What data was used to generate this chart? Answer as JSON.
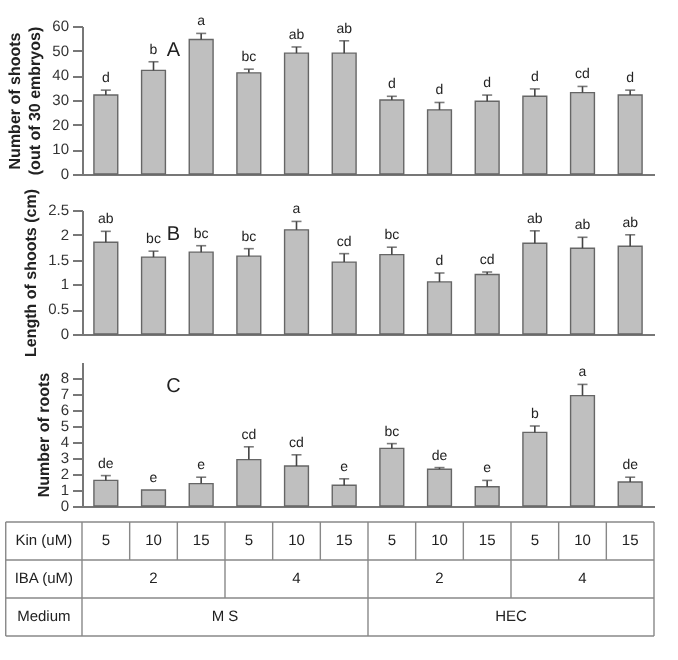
{
  "chart_data": [
    {
      "type": "bar",
      "ylabel": "Number of shoots (out of 30 embryos)",
      "categories": [
        "5",
        "10",
        "15",
        "5",
        "10",
        "15",
        "5",
        "10",
        "15",
        "5",
        "10",
        "15"
      ],
      "color": "#bfbfbf",
      "values": [
        32,
        42,
        54.5,
        41,
        49,
        49,
        30,
        26,
        29.5,
        31.5,
        33,
        32
      ],
      "errors": [
        2,
        3.5,
        2.5,
        1.5,
        2.5,
        5,
        1.5,
        3,
        2.5,
        3,
        2.5,
        2
      ],
      "value_labels": [
        "d",
        "b",
        "a",
        "bc",
        "ab",
        "ab",
        "d",
        "d",
        "d",
        "d",
        "cd",
        "d"
      ],
      "ylim": [
        0,
        60
      ],
      "yticks": [
        0,
        10,
        20,
        30,
        40,
        50,
        60
      ],
      "tick_labels": "y",
      "annotations": [
        "A"
      ]
    },
    {
      "type": "bar",
      "ylabel": "Length of shoots (cm)",
      "categories": [
        "5",
        "10",
        "15",
        "5",
        "10",
        "15",
        "5",
        "10",
        "15",
        "5",
        "10",
        "15"
      ],
      "color": "#bfbfbf",
      "values": [
        1.85,
        1.55,
        1.65,
        1.57,
        2.1,
        1.45,
        1.6,
        1.05,
        1.2,
        1.83,
        1.73,
        1.77
      ],
      "errors": [
        0.22,
        0.12,
        0.13,
        0.15,
        0.17,
        0.17,
        0.15,
        0.18,
        0.05,
        0.25,
        0.22,
        0.23
      ],
      "value_labels": [
        "ab",
        "bc",
        "bc",
        "bc",
        "a",
        "cd",
        "bc",
        "d",
        "cd",
        "ab",
        "ab",
        "ab"
      ],
      "ylim": [
        0,
        2.5
      ],
      "yticks": [
        0,
        0.5,
        1,
        1.5,
        2,
        2.5
      ],
      "tick_labels": "y",
      "annotations": [
        "B"
      ]
    },
    {
      "type": "bar",
      "ylabel": "Number of roots",
      "categories": [
        "5",
        "10",
        "15",
        "5",
        "10",
        "15",
        "5",
        "10",
        "15",
        "5",
        "10",
        "15"
      ],
      "color": "#bfbfbf",
      "values": [
        1.6,
        1.0,
        1.4,
        2.9,
        2.5,
        1.3,
        3.6,
        2.3,
        1.2,
        4.6,
        6.9,
        1.5
      ],
      "errors": [
        0.3,
        null,
        0.4,
        0.8,
        0.7,
        0.4,
        0.3,
        0.1,
        0.4,
        0.4,
        0.7,
        0.3
      ],
      "value_labels": [
        "de",
        "e",
        "e",
        "cd",
        "cd",
        "e",
        "bc",
        "de",
        "e",
        "b",
        "a",
        "de"
      ],
      "ylim": [
        0,
        9
      ],
      "yticks": [
        0,
        1,
        2,
        3,
        4,
        5,
        6,
        7,
        8
      ],
      "tick_labels": "y",
      "annotations": [
        "C",
        "Kin (uM)",
        "IBA (uM)",
        "2",
        "4",
        "2",
        "4",
        "Medium",
        "M S",
        "HEC"
      ]
    }
  ]
}
